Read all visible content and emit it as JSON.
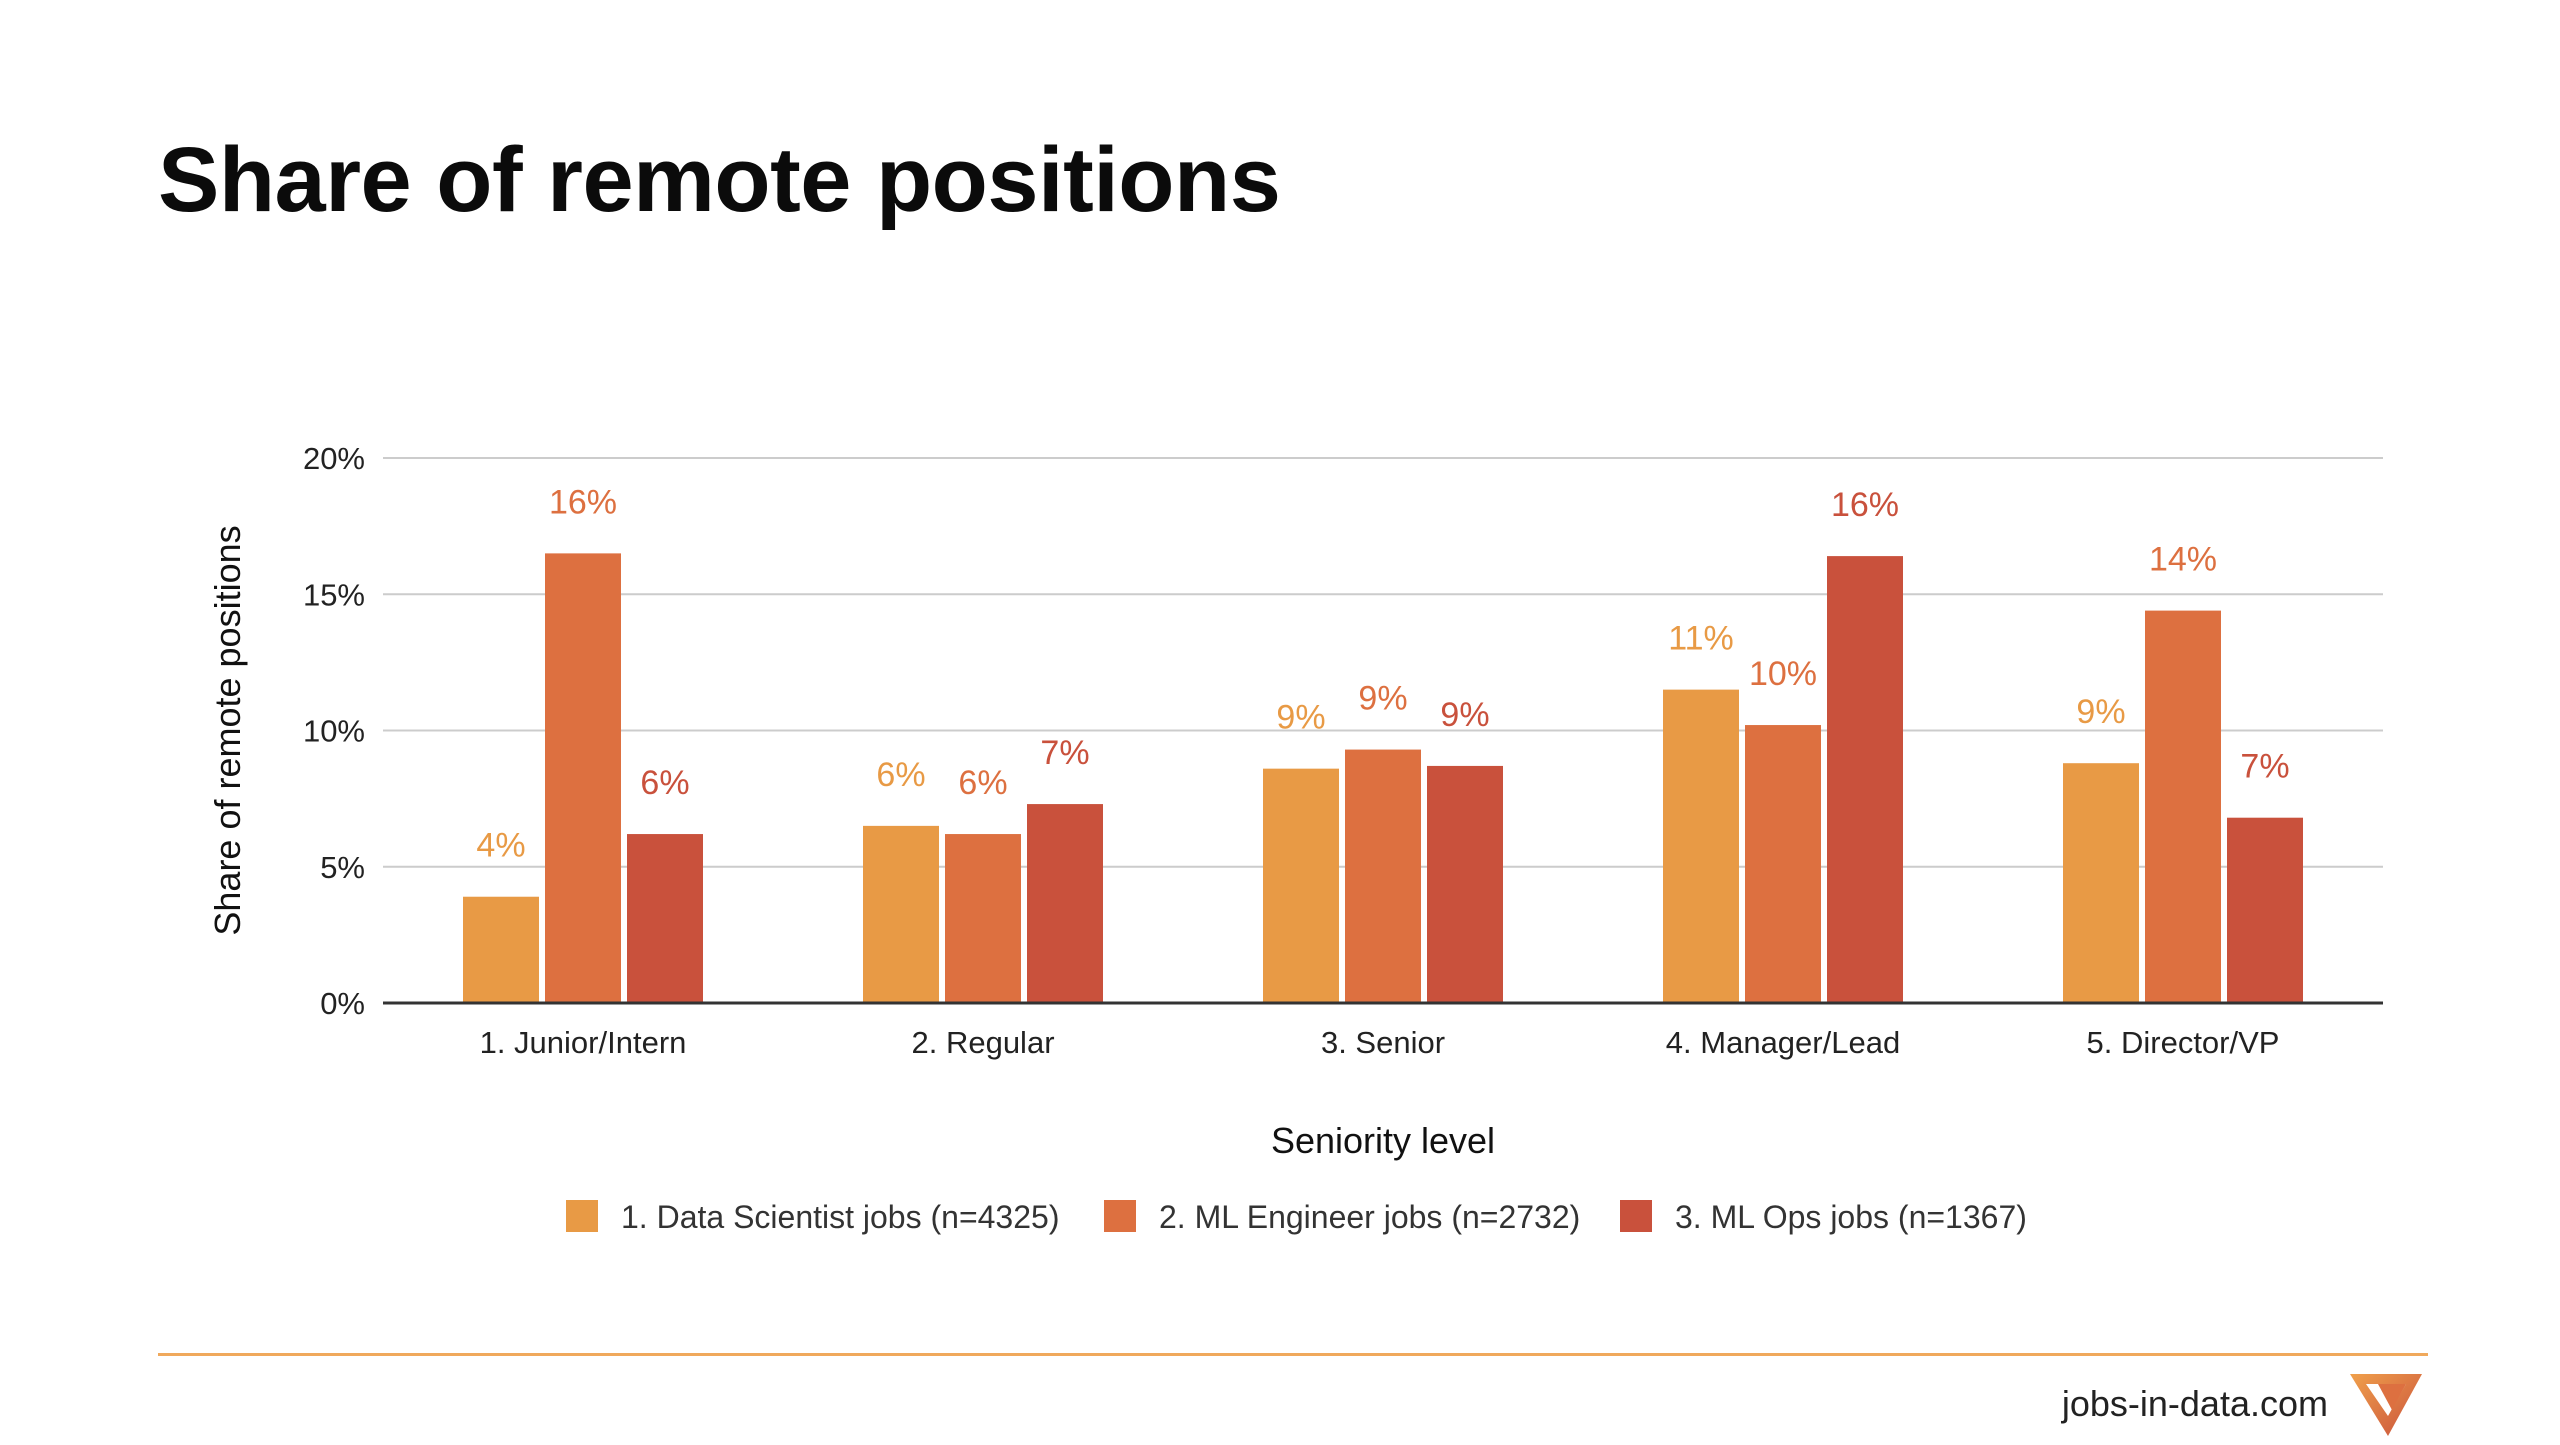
{
  "title": "Share of remote positions",
  "footer": {
    "site": "jobs-in-data.com"
  },
  "logo_icon": "jobs-in-data-logo-icon",
  "colors": {
    "series": [
      "#e89a45",
      "#dd7040",
      "#c9513c"
    ],
    "grid": "#cccccc",
    "axis": "#333333",
    "text": "#222222",
    "footer_line": "#f0a95c"
  },
  "chart_data": {
    "type": "bar",
    "categories": [
      "1. Junior/Intern",
      "2. Regular",
      "3. Senior",
      "4. Manager/Lead",
      "5. Director/VP"
    ],
    "series": [
      {
        "name": "1. Data Scientist jobs (n=4325)",
        "values": [
          3.9,
          6.5,
          8.6,
          11.5,
          8.8
        ],
        "labels": [
          "4%",
          "6%",
          "9%",
          "11%",
          "9%"
        ]
      },
      {
        "name": "2. ML Engineer jobs (n=2732)",
        "values": [
          16.5,
          6.2,
          9.3,
          10.2,
          14.4
        ],
        "labels": [
          "16%",
          "6%",
          "9%",
          "10%",
          "14%"
        ]
      },
      {
        "name": "3. ML Ops jobs (n=1367)",
        "values": [
          6.2,
          7.3,
          8.7,
          16.4,
          6.8
        ],
        "labels": [
          "6%",
          "7%",
          "9%",
          "16%",
          "7%"
        ]
      }
    ],
    "xlabel": "Seniority level",
    "ylabel": "Share of remote positions",
    "ylim": [
      0,
      20
    ],
    "yticks": [
      0,
      5,
      10,
      15,
      20
    ],
    "ytick_labels": [
      "0%",
      "5%",
      "10%",
      "15%",
      "20%"
    ],
    "grid": true,
    "legend_position": "bottom"
  }
}
